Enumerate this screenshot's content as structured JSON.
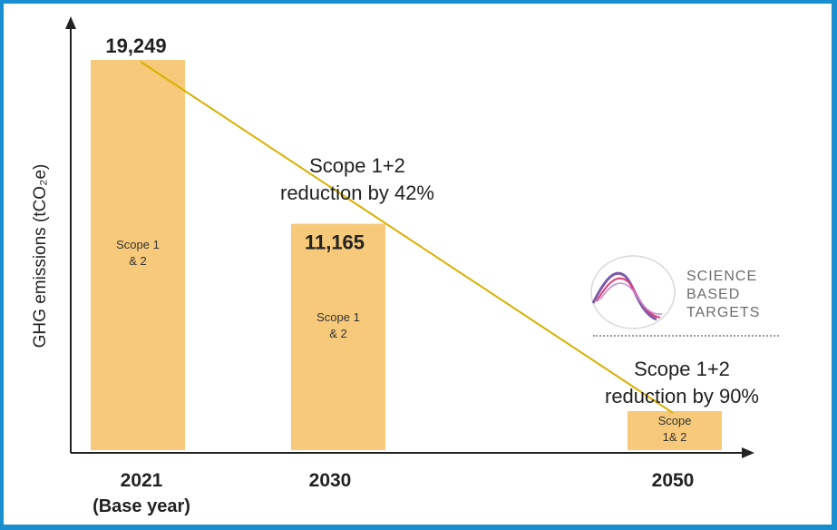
{
  "chart_data": {
    "type": "bar",
    "title": "",
    "ylabel": "GHG emissions (tCO₂e)",
    "xlabel": "",
    "categories": [
      "2021",
      "2030",
      "2050"
    ],
    "category_sublabels": [
      "(Base year)",
      "",
      ""
    ],
    "values": [
      19249,
      11165,
      1925
    ],
    "value_labels": [
      "19,249",
      "11,165",
      ""
    ],
    "bar_labels": [
      "Scope 1\n& 2",
      "Scope 1\n& 2",
      "Scope\n1& 2"
    ],
    "bar_color": "#f7c97a",
    "trend_line_color": "#d9b000",
    "ylim": [
      0,
      20000
    ],
    "grid": false,
    "legend": null,
    "annotations": [
      {
        "category": "2030",
        "lines": [
          "Scope 1+2",
          "reduction by 42%"
        ]
      },
      {
        "category": "2050",
        "lines": [
          "Scope 1+2",
          "reduction by 90%"
        ]
      }
    ]
  },
  "logo": {
    "lines": [
      "SCIENCE",
      "BASED",
      "TARGETS"
    ],
    "colors": [
      "#7b5aa6",
      "#e0407a",
      "#c58bd8"
    ]
  }
}
